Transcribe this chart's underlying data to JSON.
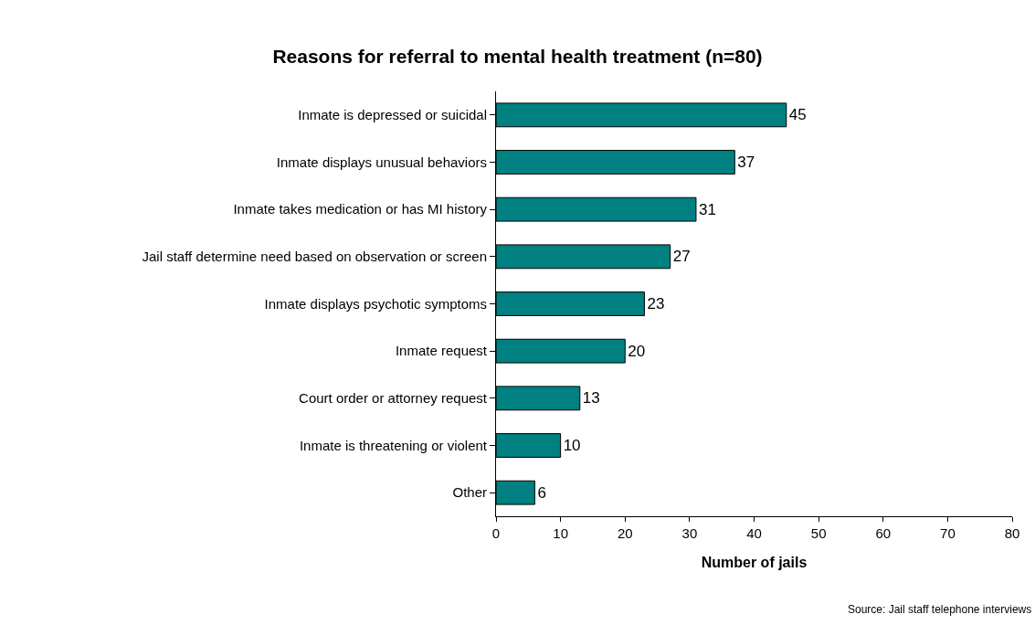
{
  "chart_data": {
    "type": "bar",
    "orientation": "horizontal",
    "title": "Reasons for referral to mental health treatment (n=80)",
    "xlabel": "Number of jails",
    "categories": [
      "Inmate is depressed or suicidal",
      "Inmate displays unusual behaviors",
      "Inmate takes medication or has MI history",
      "Jail staff determine need based on observation or screen",
      "Inmate displays psychotic symptoms",
      "Inmate request",
      "Court order or attorney request",
      "Inmate is threatening or violent",
      "Other"
    ],
    "values": [
      45,
      37,
      31,
      27,
      23,
      20,
      13,
      10,
      6
    ],
    "color": "#008080",
    "data_labels": true,
    "xlim": [
      0,
      80
    ],
    "xticks": [
      0,
      10,
      20,
      30,
      40,
      50,
      60,
      70,
      80
    ],
    "legend": false,
    "annotations": [
      "Source: Jail staff telephone interviews"
    ]
  }
}
